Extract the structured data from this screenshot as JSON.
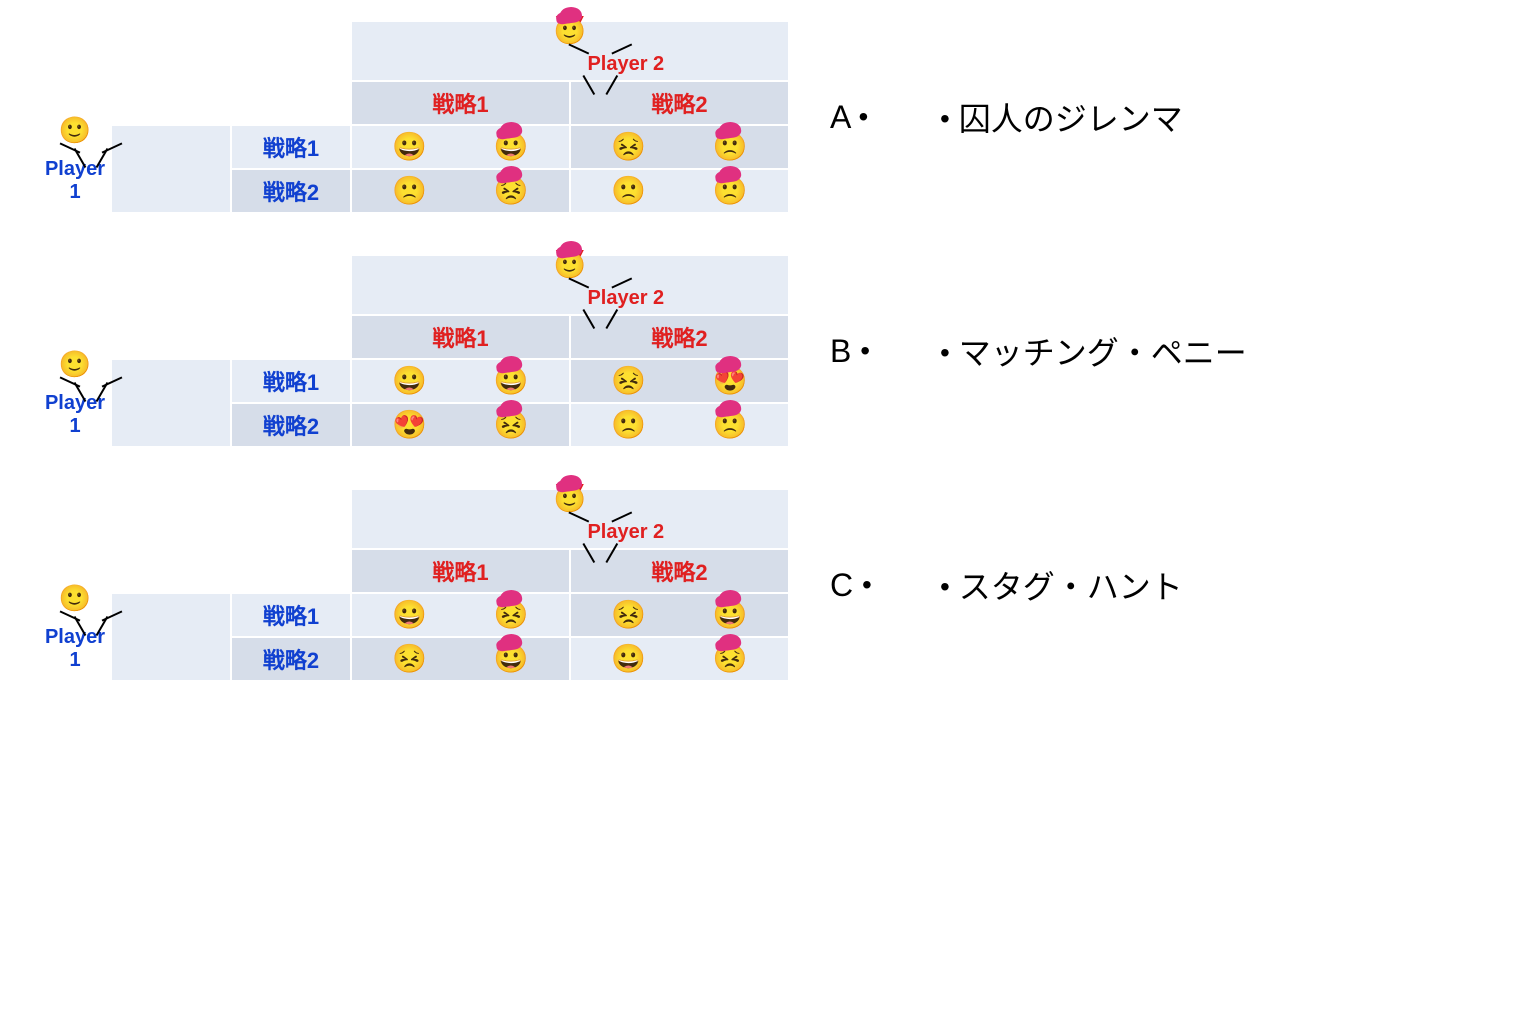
{
  "colors": {
    "bg_light": "#e6ecf5",
    "bg_mid": "#d6dde9",
    "p1": "#1040d0",
    "p2": "#e02020",
    "hair": "#e03080",
    "border": "#ffffff",
    "text": "#000000"
  },
  "labels": {
    "player1": "Player 1",
    "player2": "Player 2",
    "strategy1": "戦略1",
    "strategy2": "戦略2"
  },
  "emoji_map": {
    "grin": "😀",
    "smile": "🙂",
    "neutral": "😐",
    "frown": "🙁",
    "tired": "😣",
    "love": "😍"
  },
  "games": [
    {
      "letter": "A",
      "payoffs": [
        [
          {
            "p1": "grin",
            "p2": "grin"
          },
          {
            "p1": "tired",
            "p2": "frown"
          }
        ],
        [
          {
            "p1": "frown",
            "p2": "tired"
          },
          {
            "p1": "frown",
            "p2": "frown"
          }
        ]
      ]
    },
    {
      "letter": "B",
      "payoffs": [
        [
          {
            "p1": "grin",
            "p2": "grin"
          },
          {
            "p1": "tired",
            "p2": "love"
          }
        ],
        [
          {
            "p1": "love",
            "p2": "tired"
          },
          {
            "p1": "frown",
            "p2": "frown"
          }
        ]
      ]
    },
    {
      "letter": "C",
      "payoffs": [
        [
          {
            "p1": "grin",
            "p2": "tired"
          },
          {
            "p1": "tired",
            "p2": "grin"
          }
        ],
        [
          {
            "p1": "tired",
            "p2": "grin"
          },
          {
            "p1": "grin",
            "p2": "tired"
          }
        ]
      ]
    }
  ],
  "answers": [
    "囚人のジレンマ",
    "マッチング・ペニー",
    "スタグ・ハント"
  ]
}
